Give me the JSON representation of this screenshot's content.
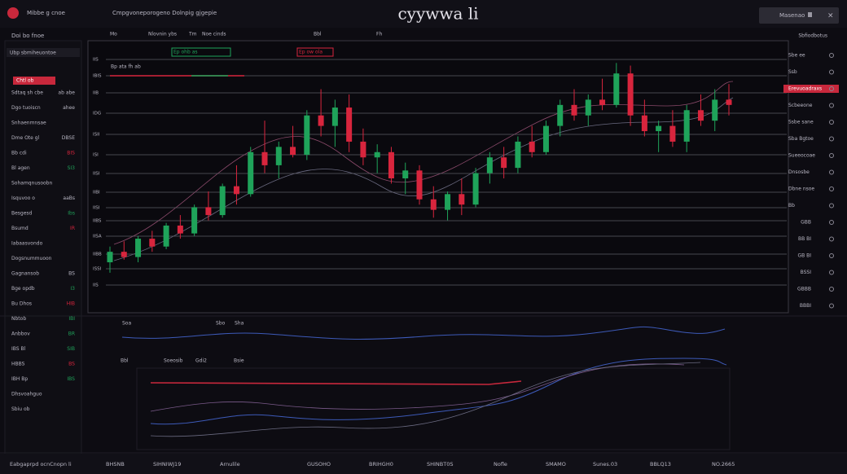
{
  "header": {
    "brand": "Mibbe g cnoe",
    "menu": "Cmpgvoneporogeno Dolnpig gjgepie",
    "title": "cyywwa li",
    "button": "Masenao"
  },
  "toolbar": [
    "Mo",
    "Nlovnin ybs",
    "Tm",
    "Noe cinds",
    "Bbl",
    "Fh"
  ],
  "left_panel": {
    "header": "Doi bo fnoe",
    "search": "Ubp sbmiheuontoe",
    "tag": "Chtl ob",
    "rows": [
      {
        "label": "Sdtaq sh cbe",
        "value": "ab abe",
        "color": "#b9b7c4"
      },
      {
        "label": "Dgo tuoiscn",
        "value": "ahee",
        "color": "#b9b7c4"
      },
      {
        "label": "Snhaenmnsae",
        "value": "",
        "color": "#b9b7c4"
      },
      {
        "label": "Dme Ote gl",
        "value": "DBSE",
        "color": "#b9b7c4"
      },
      {
        "label": "Bb cdi",
        "value": "BIS",
        "color": "#d8253d"
      },
      {
        "label": "Bl agen",
        "value": "SI3",
        "color": "#1fa35a"
      },
      {
        "label": "Sohamqnusoobn",
        "value": "",
        "color": "#b9b7c4"
      },
      {
        "label": "Isquvoo o",
        "value": "aaBs",
        "color": "#b9b7c4"
      },
      {
        "label": "Besgesd",
        "value": "Ibs",
        "color": "#1fa35a"
      },
      {
        "label": "Bsumd",
        "value": "IR",
        "color": "#d8253d"
      },
      {
        "label": "Iabaasvondo",
        "value": "",
        "color": "#b9b7c4"
      },
      {
        "label": "Dogsnummuoon",
        "value": "",
        "color": "#b9b7c4"
      },
      {
        "label": "Gagnansob",
        "value": "BS",
        "color": "#b9b7c4"
      },
      {
        "label": "Bge opdb",
        "value": "I3",
        "color": "#1fa35a"
      },
      {
        "label": "Bu Dhos",
        "value": "HIB",
        "color": "#d8253d"
      },
      {
        "label": "Nbtob",
        "value": "IBI",
        "color": "#1fa35a"
      },
      {
        "label": "Anbbov",
        "value": "BR",
        "color": "#1fa35a"
      },
      {
        "label": "IBS Bl",
        "value": "SIB",
        "color": "#1fa35a"
      },
      {
        "label": "HBBS",
        "value": "BS",
        "color": "#d8253d"
      },
      {
        "label": "IBH Bp",
        "value": "IBS",
        "color": "#1fa35a"
      },
      {
        "label": "Dhsvoahguo",
        "value": "",
        "color": "#b9b7c4"
      },
      {
        "label": "Sbiu ob",
        "value": "",
        "color": "#b9b7c4"
      }
    ]
  },
  "chart": {
    "ylim": [
      0,
      100
    ],
    "up_color": "#1fa35a",
    "down_color": "#d8253d",
    "axis_labels": [
      "IIS",
      "IBIS",
      "IIB",
      "IDG",
      "ISII",
      "ISI",
      "IISI",
      "IIBI",
      "IISI",
      "IIBS",
      "IISA",
      "IIBB",
      "ISSI",
      "IIS"
    ],
    "annotations": [
      {
        "text": "Bp ata fh ab",
        "color": "#b9b7c4"
      },
      {
        "text": "Ep ohb as",
        "color": "#1fa35a"
      },
      {
        "text": "Ep ow ola",
        "color": "#d8253d"
      }
    ],
    "candles": [
      [
        18,
        24,
        14,
        22
      ],
      [
        22,
        26,
        19,
        20
      ],
      [
        20,
        28,
        18,
        27
      ],
      [
        27,
        30,
        22,
        24
      ],
      [
        24,
        33,
        23,
        32
      ],
      [
        32,
        36,
        27,
        29
      ],
      [
        29,
        40,
        28,
        39
      ],
      [
        39,
        45,
        34,
        36
      ],
      [
        36,
        48,
        35,
        47
      ],
      [
        47,
        55,
        40,
        44
      ],
      [
        44,
        62,
        43,
        60
      ],
      [
        60,
        72,
        52,
        55
      ],
      [
        55,
        64,
        50,
        62
      ],
      [
        62,
        70,
        58,
        59
      ],
      [
        59,
        76,
        57,
        74
      ],
      [
        74,
        84,
        66,
        70
      ],
      [
        70,
        80,
        62,
        77
      ],
      [
        77,
        82,
        60,
        64
      ],
      [
        64,
        69,
        55,
        58
      ],
      [
        58,
        63,
        52,
        60
      ],
      [
        60,
        62,
        48,
        50
      ],
      [
        50,
        56,
        44,
        53
      ],
      [
        53,
        55,
        40,
        42
      ],
      [
        42,
        47,
        35,
        38
      ],
      [
        38,
        45,
        34,
        44
      ],
      [
        44,
        50,
        36,
        40
      ],
      [
        40,
        54,
        39,
        52
      ],
      [
        52,
        60,
        48,
        58
      ],
      [
        58,
        62,
        50,
        54
      ],
      [
        54,
        66,
        52,
        64
      ],
      [
        64,
        70,
        58,
        60
      ],
      [
        60,
        72,
        59,
        70
      ],
      [
        70,
        80,
        66,
        78
      ],
      [
        78,
        84,
        72,
        74
      ],
      [
        74,
        82,
        70,
        80
      ],
      [
        80,
        88,
        76,
        78
      ],
      [
        78,
        94,
        77,
        90
      ],
      [
        90,
        93,
        70,
        74
      ],
      [
        74,
        80,
        66,
        68
      ],
      [
        68,
        72,
        60,
        70
      ],
      [
        70,
        76,
        62,
        64
      ],
      [
        64,
        78,
        60,
        76
      ],
      [
        76,
        82,
        70,
        72
      ],
      [
        72,
        84,
        68,
        80
      ],
      [
        80,
        86,
        74,
        78
      ]
    ]
  },
  "right_panel": {
    "header": "Sbfiodbotus",
    "rows": [
      {
        "label": "Sbe ee",
        "highlight": false
      },
      {
        "label": "Ssb",
        "highlight": false
      },
      {
        "label": "Erevuoadraxs",
        "highlight": true
      },
      {
        "label": "Scbeeone",
        "highlight": false
      },
      {
        "label": "Ssbe sane",
        "highlight": false
      },
      {
        "label": "Sba Bgtoe",
        "highlight": false
      },
      {
        "label": "Sueeocoae",
        "highlight": false
      },
      {
        "label": "Dnsosbe",
        "highlight": false
      },
      {
        "label": "Dbne nsoe",
        "highlight": false
      },
      {
        "label": "Bb",
        "highlight": false
      },
      {
        "label": "GBB",
        "highlight": false
      },
      {
        "label": "BB BI",
        "highlight": false
      },
      {
        "label": "GB BI",
        "highlight": false
      },
      {
        "label": "BSSI",
        "highlight": false
      },
      {
        "label": "GBBB",
        "highlight": false
      },
      {
        "label": "BBBI",
        "highlight": false
      }
    ]
  },
  "indicators": {
    "labels": [
      "Soa",
      "Sbo",
      "Sha"
    ],
    "panel_labels": [
      "Bbl",
      "Soeosib",
      "Gdi2",
      "Bsie"
    ]
  },
  "bottom_bar": [
    "Eabgaprpd ocnCnopn li",
    "BHSNB",
    "SIHNIWJ19",
    "Arnulile",
    "GUSOHO",
    "BRIHGH0",
    "SHINBT0S",
    "Nofle",
    "SMAMO",
    "Sunes.03",
    "BBLQ13",
    "NO.2665"
  ]
}
